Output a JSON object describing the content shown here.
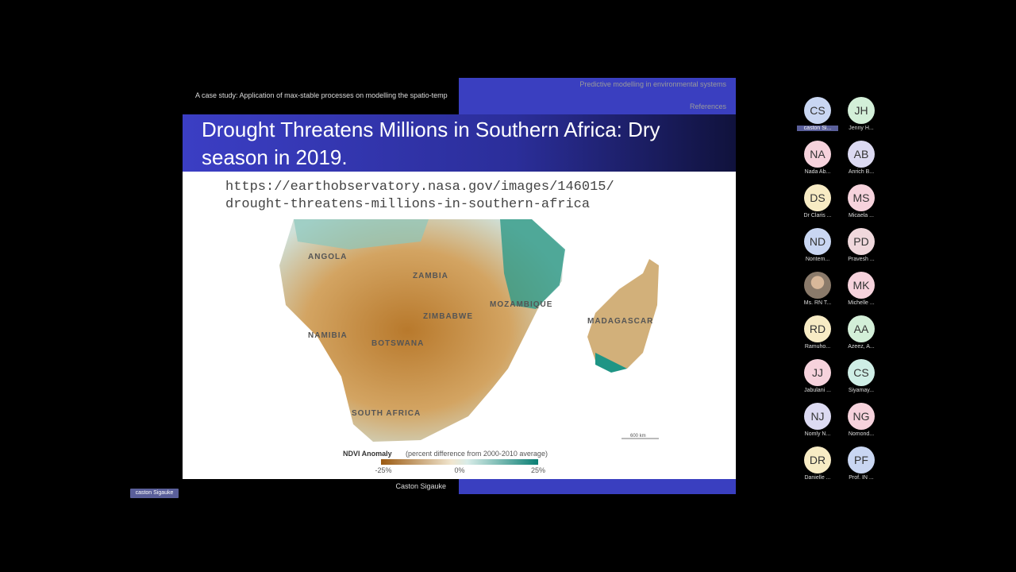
{
  "slide": {
    "header": {
      "lines": [
        "Predictive modelling in environmental systems",
        "A case study: Application of max-stable processes on modelling the spatio-temp",
        "References"
      ]
    },
    "title": "Drought Threatens Millions in Southern Africa: Dry season in 2019.",
    "url_lines": [
      "https://earthobservatory.nasa.gov/images/146015/",
      "drought-threatens-millions-in-southern-africa"
    ],
    "map": {
      "labels": [
        "ANGOLA",
        "ZAMBIA",
        "MOZAMBIQUE",
        "ZIMBABWE",
        "NAMIBIA",
        "BOTSWANA",
        "SOUTH AFRICA",
        "MADAGASCAR"
      ],
      "scale": "600 km",
      "legend": {
        "title": "NDVI Anomaly",
        "subtitle": "(percent difference from 2000-2010 average)",
        "ticks": [
          "-25%",
          "0%",
          "25%"
        ]
      }
    },
    "footer": "Caston Sigauke"
  },
  "speaker_label": "caston Sigauke",
  "participants": [
    {
      "initials": "CS",
      "name": "caston Si...",
      "color": "#c9d6f2"
    },
    {
      "initials": "JH",
      "name": "Jenny H...",
      "color": "#d3efd8"
    },
    {
      "initials": "NA",
      "name": "Nada Ab...",
      "color": "#f6d2dc"
    },
    {
      "initials": "AB",
      "name": "Anrich B...",
      "color": "#dcdaf2"
    },
    {
      "initials": "DS",
      "name": "Dr Claris ...",
      "color": "#f7ebc4"
    },
    {
      "initials": "MS",
      "name": "Micaela ...",
      "color": "#f6d2dc"
    },
    {
      "initials": "ND",
      "name": "Nontem...",
      "color": "#c9d6f2"
    },
    {
      "initials": "PD",
      "name": "Pravesh ...",
      "color": "#f0d8dc"
    },
    {
      "initials": null,
      "name": "Ms. RN T...",
      "color": "#8a7a6a"
    },
    {
      "initials": "MK",
      "name": "Michelle ...",
      "color": "#f6d2dc"
    },
    {
      "initials": "RD",
      "name": "Ramuho...",
      "color": "#f7ebc4"
    },
    {
      "initials": "AA",
      "name": "Azeez, A...",
      "color": "#d3efd8"
    },
    {
      "initials": "JJ",
      "name": "Jabulani ...",
      "color": "#f6d2dc"
    },
    {
      "initials": "CS",
      "name": "Siyamay...",
      "color": "#cfeee6"
    },
    {
      "initials": "NJ",
      "name": "Nomly N...",
      "color": "#dcdaf2"
    },
    {
      "initials": "NG",
      "name": "Nomond...",
      "color": "#f6d2dc"
    },
    {
      "initials": "DR",
      "name": "Danielle ...",
      "color": "#f7ebc4"
    },
    {
      "initials": "PF",
      "name": "Prof. IN ...",
      "color": "#c9d6f2"
    }
  ]
}
